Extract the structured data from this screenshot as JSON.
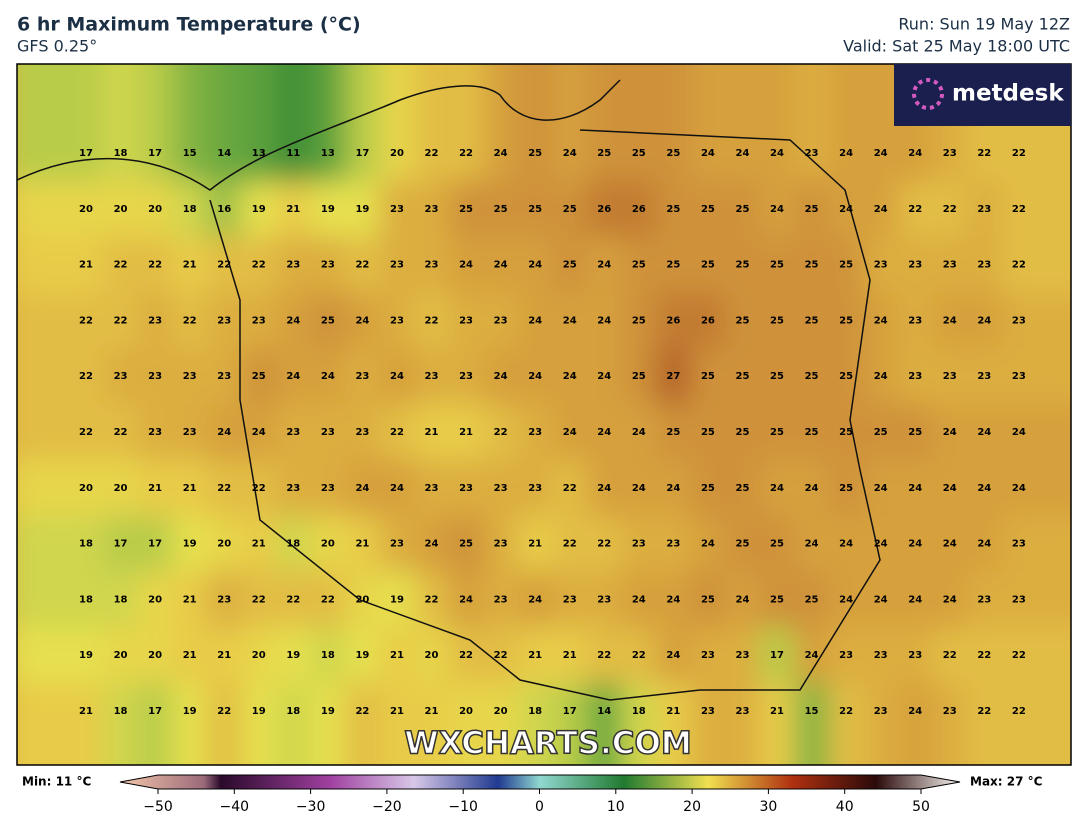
{
  "header": {
    "title": "6 hr Maximum Temperature (°C)",
    "model": "GFS 0.25°",
    "run": "Run: Sun 19 May 12Z",
    "valid": "Valid: Sat 25 May 18:00 UTC"
  },
  "logo": "metdesk",
  "watermark": "WXCHARTS.COM",
  "map": {
    "values": [
      [
        17,
        18,
        17,
        15,
        14,
        13,
        11,
        13,
        17,
        20,
        22,
        22,
        24,
        25,
        24,
        25,
        25,
        25,
        24,
        24,
        24,
        23,
        24,
        24,
        24,
        23,
        22,
        22
      ],
      [
        20,
        20,
        20,
        18,
        16,
        19,
        21,
        19,
        19,
        23,
        23,
        25,
        25,
        25,
        25,
        26,
        26,
        25,
        25,
        25,
        24,
        25,
        24,
        24,
        22,
        22,
        23,
        22
      ],
      [
        21,
        22,
        22,
        21,
        22,
        22,
        23,
        23,
        22,
        23,
        23,
        24,
        24,
        24,
        25,
        24,
        25,
        25,
        25,
        25,
        25,
        25,
        25,
        23,
        23,
        23,
        23,
        22
      ],
      [
        22,
        22,
        23,
        22,
        23,
        23,
        24,
        25,
        24,
        23,
        22,
        23,
        23,
        24,
        24,
        24,
        25,
        26,
        26,
        25,
        25,
        25,
        25,
        24,
        23,
        24,
        24,
        23
      ],
      [
        22,
        23,
        23,
        23,
        23,
        25,
        24,
        24,
        23,
        24,
        23,
        23,
        24,
        24,
        24,
        24,
        25,
        27,
        25,
        25,
        25,
        25,
        25,
        24,
        23,
        23,
        23,
        23
      ],
      [
        22,
        22,
        23,
        23,
        24,
        24,
        23,
        23,
        23,
        22,
        21,
        21,
        22,
        23,
        24,
        24,
        24,
        25,
        25,
        25,
        25,
        25,
        25,
        25,
        25,
        24,
        24,
        24
      ],
      [
        20,
        20,
        21,
        21,
        22,
        22,
        23,
        23,
        24,
        24,
        23,
        23,
        23,
        23,
        22,
        24,
        24,
        24,
        25,
        25,
        24,
        24,
        25,
        24,
        24,
        24,
        24,
        24
      ],
      [
        18,
        17,
        17,
        19,
        20,
        21,
        18,
        20,
        21,
        23,
        24,
        25,
        23,
        21,
        22,
        22,
        23,
        23,
        24,
        25,
        25,
        24,
        24,
        24,
        24,
        24,
        24,
        23
      ],
      [
        18,
        18,
        20,
        21,
        23,
        22,
        22,
        22,
        20,
        19,
        22,
        24,
        23,
        24,
        23,
        23,
        24,
        24,
        25,
        24,
        25,
        25,
        24,
        24,
        24,
        24,
        23,
        23
      ],
      [
        19,
        20,
        20,
        21,
        21,
        20,
        19,
        18,
        19,
        21,
        20,
        22,
        22,
        21,
        21,
        22,
        22,
        24,
        23,
        23,
        17,
        24,
        23,
        23,
        23,
        22,
        22,
        22
      ],
      [
        21,
        18,
        17,
        19,
        22,
        19,
        18,
        19,
        22,
        21,
        21,
        20,
        20,
        18,
        17,
        14,
        18,
        21,
        23,
        23,
        21,
        15,
        22,
        23,
        24,
        23,
        22,
        22
      ]
    ]
  },
  "colorbar": {
    "min_label": "Min: 11 °C",
    "max_label": "Max: 27 °C",
    "ticks": [
      {
        "value": -50,
        "label": "−50"
      },
      {
        "value": -40,
        "label": "−40"
      },
      {
        "value": -30,
        "label": "−30"
      },
      {
        "value": -20,
        "label": "−20"
      },
      {
        "value": -10,
        "label": "−10"
      },
      0,
      10,
      20,
      30,
      40,
      50
    ]
  }
}
